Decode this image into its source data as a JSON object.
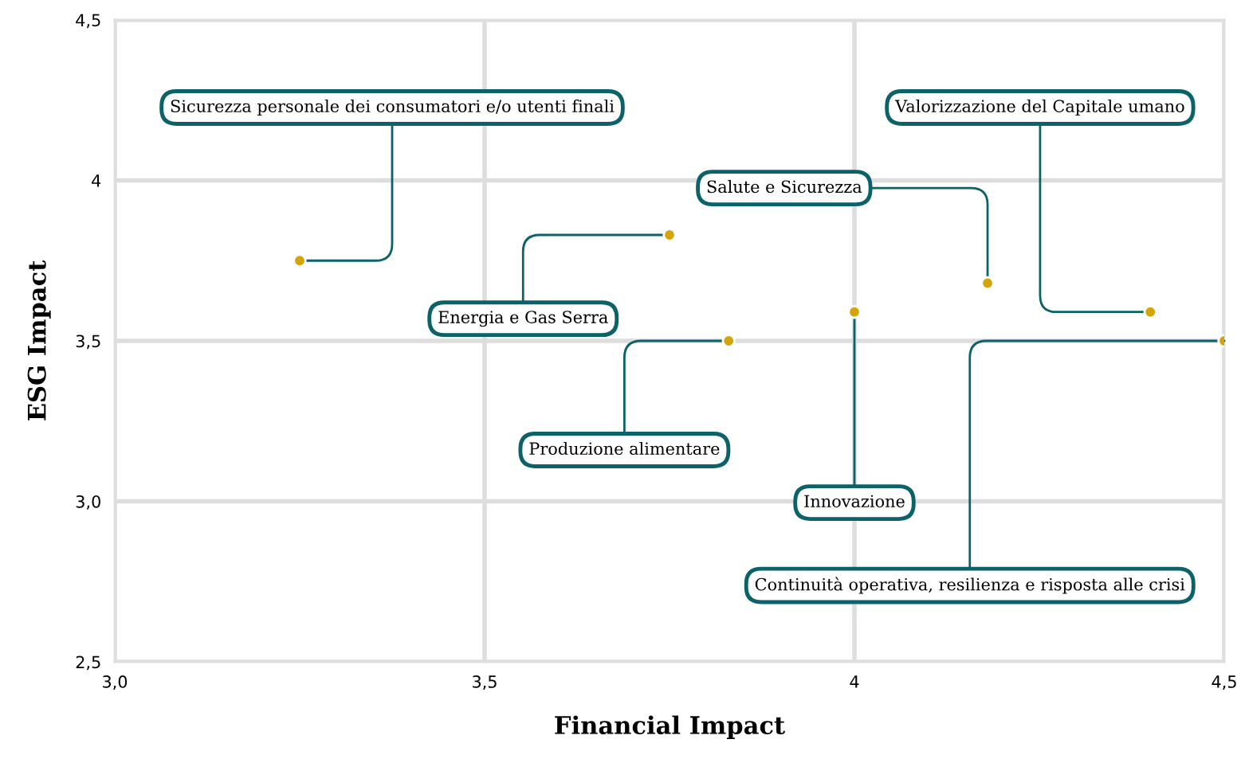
{
  "chart_data": {
    "type": "scatter",
    "xlabel": "Financial Impact",
    "ylabel": "ESG Impact",
    "x": [
      3.25,
      3.75,
      3.83,
      4.0,
      4.18,
      4.4,
      4.5
    ],
    "series": [
      {
        "color": "#d4a50a",
        "values": [
          3.75,
          3.83,
          3.5,
          3.59,
          3.68,
          3.59,
          3.5
        ]
      }
    ],
    "annotations": [
      {
        "text": "Sicurezza personale dei consumatori e/o utenti finali",
        "x": 3.25,
        "y": 3.75
      },
      {
        "text": "Energia e Gas Serra",
        "x": 3.75,
        "y": 3.83
      },
      {
        "text": "Produzione alimentare",
        "x": 3.83,
        "y": 3.5
      },
      {
        "text": "Innovazione",
        "x": 4.0,
        "y": 3.59
      },
      {
        "text": "Salute e Sicurezza",
        "x": 4.18,
        "y": 3.68
      },
      {
        "text": "Valorizzazione del Capitale umano",
        "x": 4.4,
        "y": 3.59
      },
      {
        "text": "Continuità operativa, resilienza e risposta alle crisi",
        "x": 4.5,
        "y": 3.5
      }
    ],
    "xlim": [
      3.0,
      4.5
    ],
    "ylim": [
      2.5,
      4.5
    ],
    "xticks": [
      {
        "value": 3.0,
        "label": "3,0"
      },
      {
        "value": 3.5,
        "label": "3,5"
      },
      4,
      {
        "value": 4.5,
        "label": "4,5"
      }
    ],
    "yticks": [
      {
        "value": 2.5,
        "label": "2,5"
      },
      {
        "value": 3.0,
        "label": "3,0"
      },
      {
        "value": 3.5,
        "label": "3,5"
      },
      4,
      {
        "value": 4.5,
        "label": "4,5"
      }
    ],
    "grid": true,
    "marker": "circle",
    "legend": false
  }
}
